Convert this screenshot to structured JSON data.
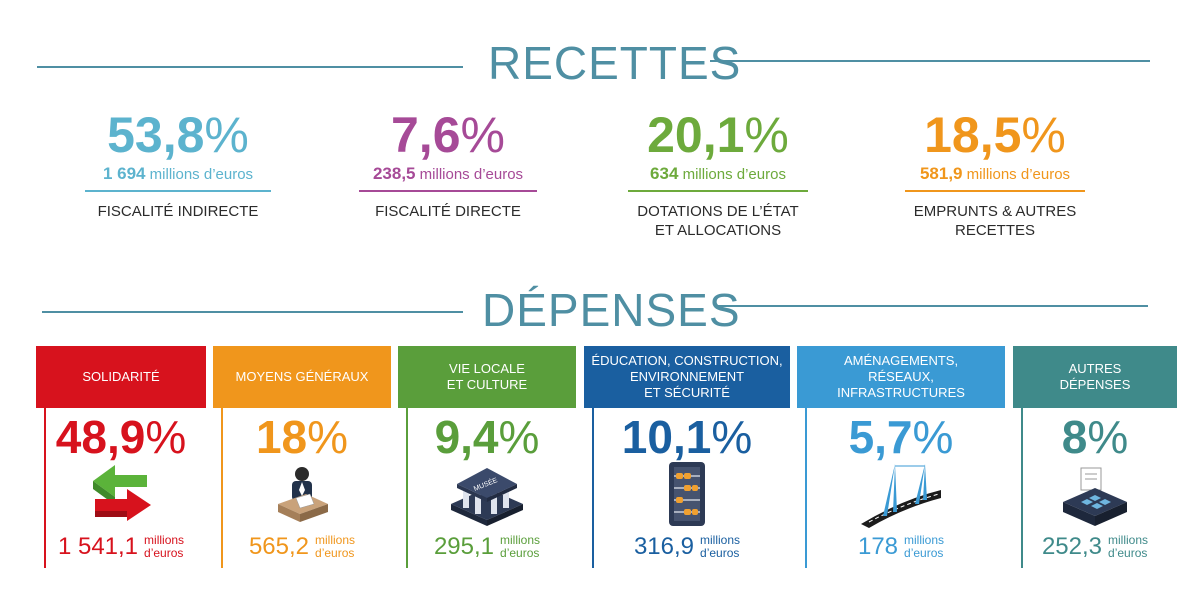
{
  "recettes": {
    "title": "RECETTES",
    "items": [
      {
        "pct": "53,8",
        "amount": "1 694",
        "unit": "millions d’euros",
        "label": "FISCALITÉ INDIRECTE",
        "color": "#5cb3ce"
      },
      {
        "pct": "7,6",
        "amount": "238,5",
        "unit": "millions d’euros",
        "label": "FISCALITÉ DIRECTE",
        "color": "#a64a97"
      },
      {
        "pct": "20,1",
        "amount": "634",
        "unit": "millions d’euros",
        "label_line1": "DOTATIONS DE L’ÉTAT",
        "label_line2": "ET ALLOCATIONS",
        "color": "#6daa3c"
      },
      {
        "pct": "18,5",
        "amount": "581,9",
        "unit": "millions d’euros",
        "label_line1": "EMPRUNTS & AUTRES",
        "label_line2": "RECETTES",
        "color": "#f0961c"
      }
    ]
  },
  "depenses": {
    "title": "DÉPENSES",
    "items": [
      {
        "header_line1": "SOLIDARITÉ",
        "header_line2": "",
        "header_line3": "",
        "pct": "48,9",
        "amount": "1 541,1",
        "unit_line1": "millions",
        "unit_line2": "d’euros",
        "color": "#d7121d",
        "icon": "exchange-arrows-icon"
      },
      {
        "header_line1": "MOYENS GÉNÉRAUX",
        "header_line2": "",
        "header_line3": "",
        "pct": "18",
        "amount": "565,2",
        "unit_line1": "millions",
        "unit_line2": "d’euros",
        "color": "#f0961c",
        "icon": "office-worker-icon"
      },
      {
        "header_line1": "VIE LOCALE",
        "header_line2": "ET CULTURE",
        "header_line3": "",
        "pct": "9,4",
        "amount": "295,1",
        "unit_line1": "millions",
        "unit_line2": "d’euros",
        "color": "#5a9e3b",
        "icon": "museum-icon",
        "icon_text": "MUSÉE"
      },
      {
        "header_line1": "ÉDUCATION, CONSTRUCTION,",
        "header_line2": "ENVIRONNEMENT",
        "header_line3": "ET SÉCURITÉ",
        "pct": "10,1",
        "amount": "316,9",
        "unit_line1": "millions",
        "unit_line2": "d’euros",
        "color": "#1a5fa0",
        "icon": "abacus-icon"
      },
      {
        "header_line1": "AMÉNAGEMENTS,",
        "header_line2": "RÉSEAUX, INFRASTRUCTURES",
        "header_line3": "",
        "pct": "5,7",
        "amount": "178",
        "unit_line1": "millions",
        "unit_line2": "d’euros",
        "color": "#3a9ad4",
        "icon": "bridge-road-icon"
      },
      {
        "header_line1": "AUTRES",
        "header_line2": "DÉPENSES",
        "header_line3": "",
        "pct": "8",
        "amount": "252,3",
        "unit_line1": "millions",
        "unit_line2": "d’euros",
        "color": "#3f8a8a",
        "icon": "cash-register-icon"
      }
    ]
  },
  "chart_data": {
    "type": "table",
    "title": "",
    "sections": [
      {
        "name": "RECETTES",
        "rows": [
          {
            "label": "FISCALITÉ INDIRECTE",
            "percent": 53.8,
            "millions_euros": 1694
          },
          {
            "label": "FISCALITÉ DIRECTE",
            "percent": 7.6,
            "millions_euros": 238.5
          },
          {
            "label": "DOTATIONS DE L’ÉTAT ET ALLOCATIONS",
            "percent": 20.1,
            "millions_euros": 634
          },
          {
            "label": "EMPRUNTS & AUTRES RECETTES",
            "percent": 18.5,
            "millions_euros": 581.9
          }
        ]
      },
      {
        "name": "DÉPENSES",
        "rows": [
          {
            "label": "SOLIDARITÉ",
            "percent": 48.9,
            "millions_euros": 1541.1
          },
          {
            "label": "MOYENS GÉNÉRAUX",
            "percent": 18,
            "millions_euros": 565.2
          },
          {
            "label": "VIE LOCALE ET CULTURE",
            "percent": 9.4,
            "millions_euros": 295.1
          },
          {
            "label": "ÉDUCATION, CONSTRUCTION, ENVIRONNEMENT ET SÉCURITÉ",
            "percent": 10.1,
            "millions_euros": 316.9
          },
          {
            "label": "AMÉNAGEMENTS, RÉSEAUX, INFRASTRUCTURES",
            "percent": 5.7,
            "millions_euros": 178
          },
          {
            "label": "AUTRES DÉPENSES",
            "percent": 8,
            "millions_euros": 252.3
          }
        ]
      }
    ]
  }
}
